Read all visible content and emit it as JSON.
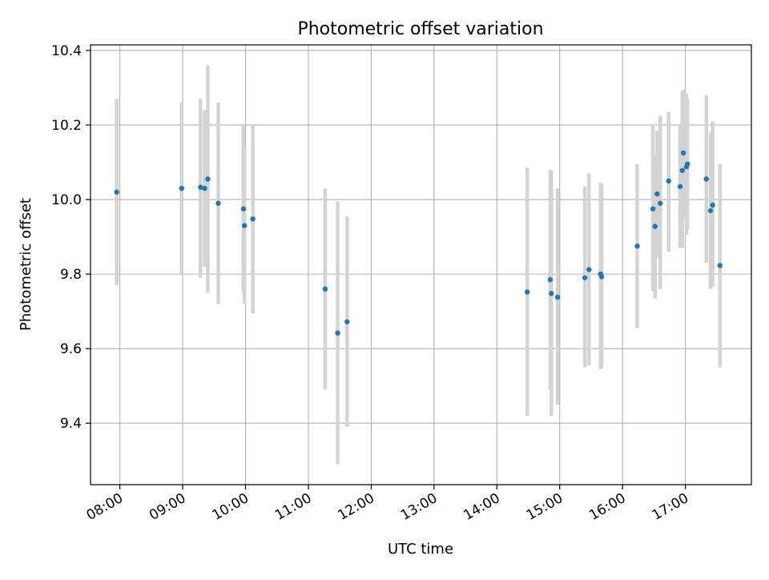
{
  "chart_data": {
    "type": "scatter",
    "title": "Photometric offset variation",
    "xlabel": "UTC time",
    "ylabel": "Photometric offset",
    "x_tick_labels": [
      "08:00",
      "09:00",
      "10:00",
      "11:00",
      "12:00",
      "13:00",
      "14:00",
      "15:00",
      "16:00",
      "17:00"
    ],
    "y_tick_labels": [
      "9.4",
      "9.6",
      "9.8",
      "10.0",
      "10.2",
      "10.4"
    ],
    "xlim": [
      "07:32",
      "18:03"
    ],
    "ylim": [
      9.235,
      10.415
    ],
    "grid": true,
    "marker_color": "#1f77b4",
    "errorbar_color": "#d3d3d3",
    "series": [
      {
        "points": [
          {
            "x": "07:57",
            "y": 10.02,
            "ylow": 9.77,
            "yhigh": 10.27
          },
          {
            "x": "08:59",
            "y": 10.03,
            "ylow": 9.8,
            "yhigh": 10.26
          },
          {
            "x": "09:17",
            "y": 10.033,
            "ylow": 9.79,
            "yhigh": 10.27
          },
          {
            "x": "09:21",
            "y": 10.03,
            "ylow": 9.82,
            "yhigh": 10.24
          },
          {
            "x": "09:24",
            "y": 10.055,
            "ylow": 9.75,
            "yhigh": 10.36
          },
          {
            "x": "09:34",
            "y": 9.99,
            "ylow": 9.72,
            "yhigh": 10.26
          },
          {
            "x": "09:58",
            "y": 9.975,
            "ylow": 9.75,
            "yhigh": 10.2
          },
          {
            "x": "09:59",
            "y": 9.93,
            "ylow": 9.72,
            "yhigh": 10.14
          },
          {
            "x": "10:07",
            "y": 9.948,
            "ylow": 9.695,
            "yhigh": 10.2
          },
          {
            "x": "11:16",
            "y": 9.76,
            "ylow": 9.49,
            "yhigh": 10.03
          },
          {
            "x": "11:28",
            "y": 9.642,
            "ylow": 9.29,
            "yhigh": 9.995
          },
          {
            "x": "11:37",
            "y": 9.672,
            "ylow": 9.39,
            "yhigh": 9.955
          },
          {
            "x": "14:29",
            "y": 9.752,
            "ylow": 9.42,
            "yhigh": 10.085
          },
          {
            "x": "14:51",
            "y": 9.785,
            "ylow": 9.49,
            "yhigh": 10.08
          },
          {
            "x": "14:52",
            "y": 9.748,
            "ylow": 9.42,
            "yhigh": 10.08
          },
          {
            "x": "14:58",
            "y": 9.738,
            "ylow": 9.45,
            "yhigh": 10.03
          },
          {
            "x": "15:24",
            "y": 9.79,
            "ylow": 9.55,
            "yhigh": 10.035
          },
          {
            "x": "15:28",
            "y": 9.812,
            "ylow": 9.555,
            "yhigh": 10.07
          },
          {
            "x": "15:39",
            "y": 9.8,
            "ylow": 9.545,
            "yhigh": 10.045
          },
          {
            "x": "15:40",
            "y": 9.793,
            "ylow": 9.55,
            "yhigh": 10.04
          },
          {
            "x": "16:14",
            "y": 9.875,
            "ylow": 9.655,
            "yhigh": 10.095
          },
          {
            "x": "16:29",
            "y": 9.975,
            "ylow": 9.755,
            "yhigh": 10.2
          },
          {
            "x": "16:31",
            "y": 9.928,
            "ylow": 9.735,
            "yhigh": 10.12
          },
          {
            "x": "16:33",
            "y": 10.015,
            "ylow": 9.845,
            "yhigh": 10.185
          },
          {
            "x": "16:36",
            "y": 9.99,
            "ylow": 9.76,
            "yhigh": 10.225
          },
          {
            "x": "16:44",
            "y": 10.05,
            "ylow": 9.86,
            "yhigh": 10.235
          },
          {
            "x": "16:55",
            "y": 10.035,
            "ylow": 9.87,
            "yhigh": 10.2
          },
          {
            "x": "16:57",
            "y": 10.078,
            "ylow": 9.87,
            "yhigh": 10.29
          },
          {
            "x": "16:58",
            "y": 10.125,
            "ylow": 9.95,
            "yhigh": 10.295
          },
          {
            "x": "17:01",
            "y": 10.088,
            "ylow": 9.905,
            "yhigh": 10.285
          },
          {
            "x": "17:02",
            "y": 10.095,
            "ylow": 9.92,
            "yhigh": 10.27
          },
          {
            "x": "17:20",
            "y": 10.055,
            "ylow": 9.83,
            "yhigh": 10.28
          },
          {
            "x": "17:24",
            "y": 9.97,
            "ylow": 9.76,
            "yhigh": 10.18
          },
          {
            "x": "17:26",
            "y": 9.985,
            "ylow": 9.765,
            "yhigh": 10.21
          },
          {
            "x": "17:33",
            "y": 9.823,
            "ylow": 9.55,
            "yhigh": 10.095
          }
        ]
      }
    ]
  }
}
